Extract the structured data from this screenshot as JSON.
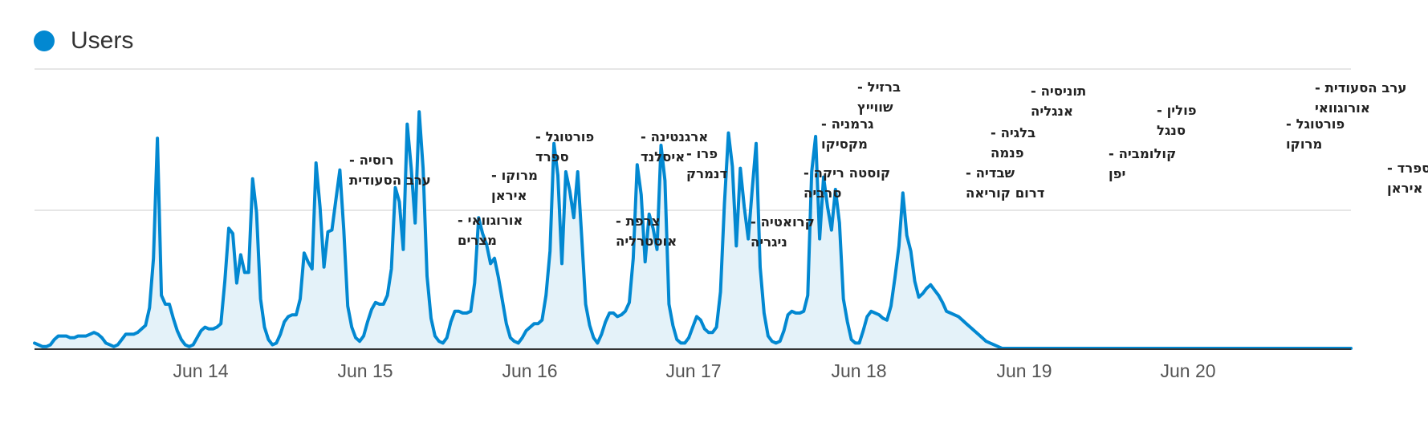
{
  "legend": {
    "label": "Users",
    "color": "#0288d1"
  },
  "chart_data": {
    "type": "area",
    "series": [
      {
        "name": "Users",
        "color": "#0288d1",
        "values": [
          3,
          2,
          1,
          1,
          2,
          5,
          7,
          7,
          7,
          6,
          6,
          7,
          7,
          7,
          8,
          9,
          8,
          6,
          3,
          2,
          1,
          2,
          5,
          8,
          8,
          8,
          9,
          11,
          13,
          23,
          51,
          119,
          30,
          25,
          25,
          17,
          10,
          5,
          2,
          1,
          2,
          6,
          10,
          12,
          11,
          11,
          12,
          14,
          38,
          68,
          65,
          37,
          53,
          43,
          43,
          96,
          77,
          28,
          12,
          5,
          2,
          3,
          8,
          15,
          18,
          19,
          19,
          28,
          54,
          49,
          45,
          105,
          80,
          46,
          66,
          67,
          84,
          101,
          67,
          24,
          12,
          6,
          4,
          7,
          15,
          22,
          26,
          25,
          25,
          30,
          45,
          91,
          83,
          56,
          127,
          102,
          71,
          134,
          102,
          41,
          17,
          7,
          4,
          3,
          6,
          15,
          21,
          21,
          20,
          20,
          21,
          37,
          74,
          65,
          59,
          48,
          51,
          40,
          27,
          14,
          6,
          4,
          3,
          6,
          10,
          12,
          14,
          14,
          16,
          30,
          55,
          116,
          98,
          48,
          100,
          89,
          74,
          100,
          63,
          25,
          13,
          6,
          3,
          8,
          15,
          20,
          20,
          18,
          19,
          21,
          26,
          51,
          104,
          87,
          49,
          76,
          68,
          56,
          115,
          95,
          25,
          13,
          5,
          3,
          3,
          6,
          12,
          18,
          16,
          11,
          9,
          9,
          12,
          32,
          82,
          122,
          103,
          58,
          102,
          80,
          62,
          90,
          116,
          46,
          20,
          7,
          4,
          3,
          4,
          10,
          19,
          21,
          20,
          20,
          21,
          30,
          100,
          120,
          62,
          97,
          80,
          67,
          90,
          71,
          28,
          15,
          5,
          3,
          3,
          10,
          18,
          21,
          20,
          19,
          17,
          16,
          24,
          40,
          58,
          88,
          64,
          55,
          38,
          29,
          31,
          34,
          36,
          33,
          30,
          26,
          21,
          20,
          19,
          18,
          16,
          14,
          12,
          10,
          8,
          6,
          4,
          3,
          2,
          1,
          0,
          0,
          0,
          0,
          0,
          0,
          0,
          0,
          0,
          0,
          0,
          0,
          0,
          0,
          0,
          0,
          0,
          0,
          0,
          0,
          0,
          0,
          0,
          0,
          0,
          0,
          0,
          0,
          0,
          0,
          0,
          0,
          0,
          0,
          0,
          0,
          0,
          0,
          0,
          0,
          0,
          0,
          0,
          0,
          0,
          0,
          0,
          0,
          0,
          0,
          0,
          0,
          0,
          0,
          0,
          0,
          0,
          0,
          0,
          0,
          0,
          0,
          0,
          0,
          0,
          0,
          0,
          0,
          0,
          0,
          0,
          0,
          0,
          0,
          0,
          0,
          0,
          0,
          0,
          0,
          0,
          0,
          0,
          0,
          0,
          0,
          0,
          0,
          0
        ]
      }
    ],
    "x_ticks": [
      "Jun 14",
      "Jun 15",
      "Jun 16",
      "Jun 17",
      "Jun 18",
      "Jun 19",
      "Jun 20"
    ],
    "annotations": [
      {
        "lines": [
          "רוסיה -",
          "ערב הסעודית"
        ],
        "index": 36
      },
      {
        "lines": [
          "אורוגוואי -",
          "מצרים"
        ],
        "index": 55
      },
      {
        "lines": [
          "מרוקו -",
          "איראן"
        ],
        "index": 59
      },
      {
        "lines": [
          "פורטוגל -",
          "ספרד"
        ],
        "index": 64
      },
      {
        "lines": [
          "צרפת -",
          "אוסטרליה"
        ],
        "index": 75
      },
      {
        "lines": [
          "ארגנטינה -",
          "איסלנד"
        ],
        "index": 80
      },
      {
        "lines": [
          "פרו -",
          "דנמרק"
        ],
        "index": 84
      },
      {
        "lines": [
          "קרואטיה -",
          "ניגריה"
        ],
        "index": 91
      },
      {
        "lines": [
          "קוסטה ריקה -",
          "סרביה"
        ],
        "index": 99
      },
      {
        "lines": [
          "גרמניה -",
          "מקסיקו"
        ],
        "index": 103
      },
      {
        "lines": [
          "ברזיל -",
          "שווייץ"
        ],
        "index": 108
      },
      {
        "lines": [
          "שבדיה -",
          "דרום קוריאה"
        ],
        "index": 122
      },
      {
        "lines": [
          "בלגיה -",
          "פנמה"
        ],
        "index": 128
      },
      {
        "lines": [
          "תוניסיה -",
          "אנגליה"
        ],
        "index": 133
      },
      {
        "lines": [
          "קולומביה -",
          "יפן"
        ],
        "index": 145
      },
      {
        "lines": [
          "פולין -",
          "סנגל"
        ],
        "index": 150
      },
      {
        "lines": [
          "פורטוגל -",
          "מרוקו"
        ],
        "index": 163
      },
      {
        "lines": [
          "ערב הסעודית -",
          "אורוגוואי"
        ],
        "index": 168
      },
      {
        "lines": [
          "ספרד -",
          "איראן"
        ],
        "index": 173
      }
    ],
    "grid": true,
    "legend_position": "top-left"
  }
}
